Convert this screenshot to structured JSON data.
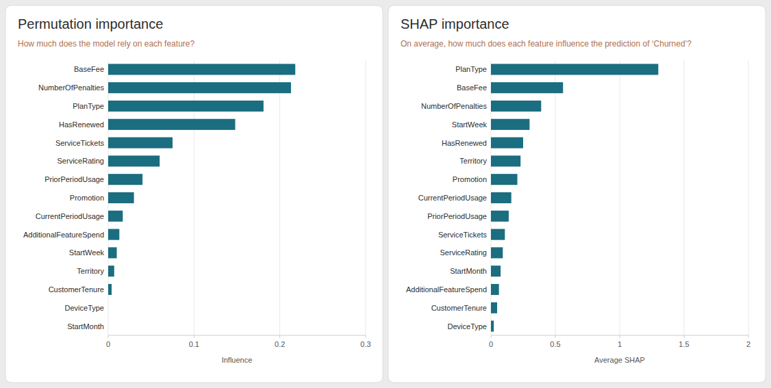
{
  "chart_data": [
    {
      "type": "bar",
      "orientation": "horizontal",
      "title": "Permutation importance",
      "subtitle": "How much does the model rely on each feature?",
      "x_label": "Influence",
      "categories": [
        "StartMonth",
        "DeviceType",
        "CustomerTenure",
        "Territory",
        "StartWeek",
        "AdditionalFeatureSpend",
        "CurrentPeriodUsage",
        "Promotion",
        "PriorPeriodUsage",
        "ServiceRating",
        "ServiceTickets",
        "HasRenewed",
        "PlanType",
        "NumberOfPenalties",
        "BaseFee"
      ],
      "values": [
        0.0,
        0.0,
        0.004,
        0.007,
        0.01,
        0.013,
        0.017,
        0.03,
        0.04,
        0.06,
        0.075,
        0.148,
        0.181,
        0.213,
        0.218
      ],
      "color": "#1b6d80",
      "xlim": [
        0,
        0.3
      ],
      "xticks": [
        0,
        0.1,
        0.2,
        0.3
      ],
      "grid": true
    },
    {
      "type": "bar",
      "orientation": "horizontal",
      "title": "SHAP importance",
      "subtitle": "On average, how much does each feature influence the prediction of ‘Churned’?",
      "x_label": "Average SHAP",
      "categories": [
        "DeviceType",
        "CustomerTenure",
        "AdditionalFeatureSpend",
        "StartMonth",
        "ServiceRating",
        "ServiceTickets",
        "PriorPeriodUsage",
        "CurrentPeriodUsage",
        "Promotion",
        "Territory",
        "HasRenewed",
        "StartWeek",
        "NumberOfPenalties",
        "BaseFee",
        "PlanType"
      ],
      "values": [
        0.022,
        0.048,
        0.062,
        0.075,
        0.092,
        0.108,
        0.138,
        0.158,
        0.205,
        0.23,
        0.25,
        0.3,
        0.39,
        0.56,
        1.3
      ],
      "color": "#1b6d80",
      "xlim": [
        0,
        2
      ],
      "xticks": [
        0,
        0.5,
        1,
        1.5,
        2
      ],
      "grid": true
    }
  ]
}
